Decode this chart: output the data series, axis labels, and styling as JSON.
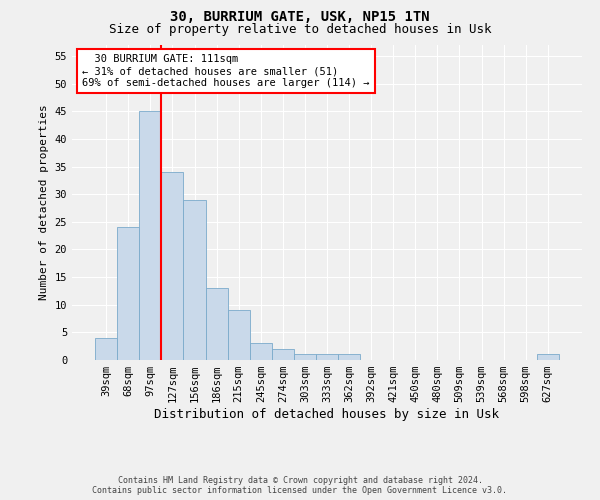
{
  "title1": "30, BURRIUM GATE, USK, NP15 1TN",
  "title2": "Size of property relative to detached houses in Usk",
  "xlabel": "Distribution of detached houses by size in Usk",
  "ylabel": "Number of detached properties",
  "bar_labels": [
    "39sqm",
    "68sqm",
    "97sqm",
    "127sqm",
    "156sqm",
    "186sqm",
    "215sqm",
    "245sqm",
    "274sqm",
    "303sqm",
    "333sqm",
    "362sqm",
    "392sqm",
    "421sqm",
    "450sqm",
    "480sqm",
    "509sqm",
    "539sqm",
    "568sqm",
    "598sqm",
    "627sqm"
  ],
  "bar_values": [
    4,
    24,
    45,
    34,
    29,
    13,
    9,
    3,
    2,
    1,
    1,
    1,
    0,
    0,
    0,
    0,
    0,
    0,
    0,
    0,
    1
  ],
  "bar_color": "#c9d9ea",
  "bar_edgecolor": "#7aaacb",
  "property_line_x": 2.5,
  "property_line_color": "red",
  "annotation_text": "  30 BURRIUM GATE: 111sqm\n← 31% of detached houses are smaller (51)\n69% of semi-detached houses are larger (114) →",
  "annotation_box_color": "white",
  "annotation_box_edgecolor": "red",
  "ylim": [
    0,
    57
  ],
  "yticks": [
    0,
    5,
    10,
    15,
    20,
    25,
    30,
    35,
    40,
    45,
    50,
    55
  ],
  "footer1": "Contains HM Land Registry data © Crown copyright and database right 2024.",
  "footer2": "Contains public sector information licensed under the Open Government Licence v3.0.",
  "background_color": "#f0f0f0",
  "grid_color": "#ffffff",
  "title1_fontsize": 10,
  "title2_fontsize": 9,
  "tick_fontsize": 7.5,
  "ylabel_fontsize": 8,
  "xlabel_fontsize": 9
}
